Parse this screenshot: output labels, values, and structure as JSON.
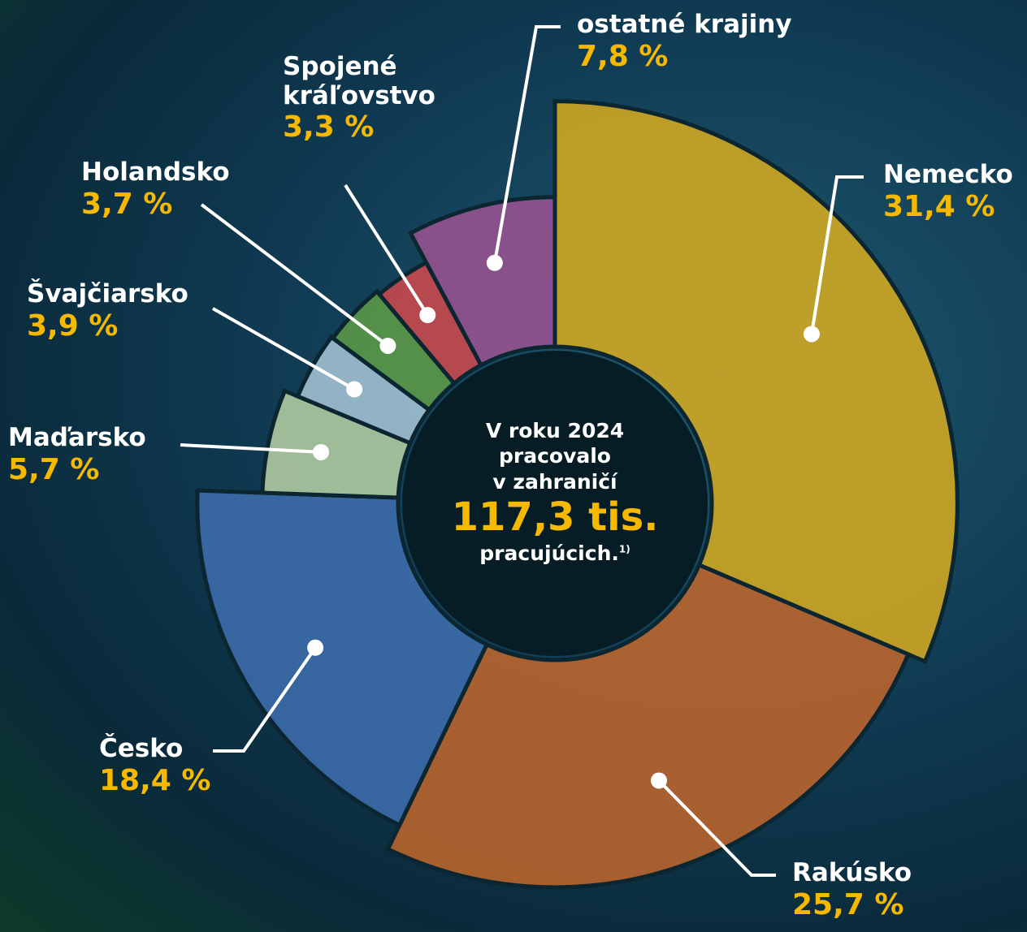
{
  "chart_data": {
    "type": "pie",
    "categories": [
      "Nemecko",
      "Rakúsko",
      "Česko",
      "Maďarsko",
      "Švajčiarsko",
      "Holandsko",
      "Spojené kráľovstvo",
      "ostatné krajiny"
    ],
    "values": [
      31.4,
      25.7,
      18.4,
      5.7,
      3.9,
      3.7,
      3.3,
      7.8
    ],
    "value_labels": [
      "31,4 %",
      "25,7 %",
      "18,4 %",
      "5,7 %",
      "3,9 %",
      "3,7 %",
      "3,3 %",
      "7,8 %"
    ],
    "colors": [
      "#d9ad1e",
      "#c4672c",
      "#3f6eaf",
      "#b9d2a4",
      "#a9c7d8",
      "#5f9e47",
      "#d2494c",
      "#9d5393"
    ],
    "center_text": {
      "line1": "V roku 2024",
      "line2": "pracovalo",
      "line3": "v zahraničí",
      "total": "117,3 tis.",
      "unit": "pracujúcich.",
      "footnote": "1)"
    }
  }
}
